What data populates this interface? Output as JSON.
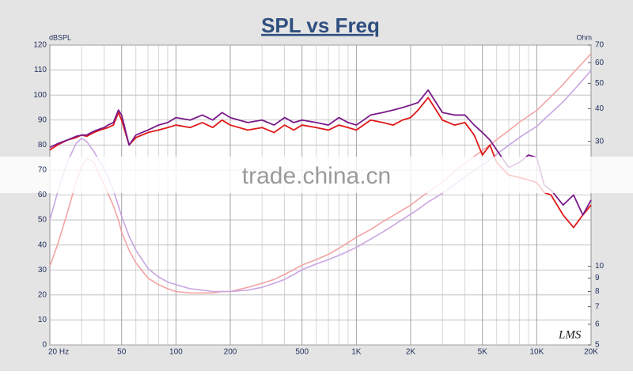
{
  "chart_data": {
    "type": "line",
    "title": "SPL vs Freq",
    "ylabel": "dBSPL",
    "y2label": "Ohm",
    "watermark": "trade.china.cn",
    "signature": "LMS",
    "xlog": true,
    "y2log": true,
    "grid": true,
    "xlim": [
      20,
      20000
    ],
    "xticks": [
      {
        "value": 20,
        "label": "20 Hz"
      },
      50,
      100,
      200,
      500,
      {
        "value": 1000,
        "label": "1K"
      },
      {
        "value": 2000,
        "label": "2K"
      },
      {
        "value": 5000,
        "label": "5K"
      },
      {
        "value": 10000,
        "label": "10K"
      },
      {
        "value": 20000,
        "label": "20K"
      }
    ],
    "xminorticks": [
      30,
      40,
      60,
      70,
      80,
      90,
      300,
      400,
      600,
      700,
      800,
      900,
      3000,
      4000,
      6000,
      7000,
      8000,
      9000
    ],
    "ylim": [
      0,
      120
    ],
    "yticks": [
      0,
      10,
      20,
      30,
      40,
      50,
      60,
      70,
      80,
      90,
      100,
      110,
      120
    ],
    "y2lim": [
      5,
      70
    ],
    "y2ticks": [
      5,
      6,
      7,
      8,
      9,
      10,
      30,
      40,
      50,
      60,
      70
    ],
    "x": [
      20,
      22,
      25,
      28,
      30,
      32,
      35,
      38,
      40,
      42,
      45,
      48,
      50,
      55,
      60,
      70,
      80,
      90,
      100,
      120,
      140,
      160,
      180,
      200,
      250,
      300,
      350,
      400,
      450,
      500,
      600,
      700,
      800,
      900,
      1000,
      1200,
      1400,
      1600,
      1800,
      2000,
      2200,
      2500,
      3000,
      3500,
      4000,
      4500,
      5000,
      5500,
      6000,
      7000,
      8000,
      9000,
      10000,
      11000,
      12000,
      14000,
      16000,
      18000,
      20000
    ],
    "series": [
      {
        "color": "#e01818",
        "values": [
          78,
          80,
          82,
          83,
          84,
          83.5,
          85,
          86,
          86.5,
          87,
          88,
          93,
          90,
          80,
          83,
          85,
          86,
          87,
          88,
          87,
          89,
          87,
          90,
          88,
          86,
          87,
          85,
          88,
          86,
          88,
          87,
          86,
          88,
          87,
          86,
          90,
          89,
          88,
          90,
          91,
          94,
          99,
          90,
          88,
          89,
          84,
          76,
          80,
          73,
          68,
          67,
          66,
          65,
          61,
          60,
          52,
          47,
          52,
          56
        ]
      },
      {
        "color": "#7a1a8a",
        "values": [
          79,
          80.5,
          82,
          83.5,
          84,
          84,
          85.5,
          86.5,
          87,
          88,
          89,
          94,
          92,
          80,
          84,
          86,
          88,
          89,
          91,
          90,
          92,
          90,
          93,
          91,
          89,
          90,
          88,
          91,
          89,
          90,
          89,
          88,
          91,
          89,
          88,
          92,
          93,
          94,
          95,
          96,
          97,
          102,
          93,
          92,
          92,
          88,
          85,
          82,
          78,
          71,
          73,
          76,
          75,
          64,
          62,
          56,
          60,
          52,
          58
        ]
      },
      {
        "color": "#f2a4a4",
        "axis": "y2",
        "values": [
          10,
          12,
          16,
          21,
          24,
          25.8,
          25,
          22,
          20.5,
          19,
          17,
          15,
          13.5,
          11.5,
          10.3,
          9,
          8.5,
          8.2,
          8,
          7.9,
          7.9,
          7.9,
          8,
          8,
          8.3,
          8.6,
          8.9,
          9.3,
          9.7,
          10.1,
          10.6,
          11.1,
          11.7,
          12.3,
          12.9,
          13.8,
          14.8,
          15.6,
          16.4,
          17.1,
          18,
          19.2,
          21,
          23,
          24.8,
          26.3,
          27.7,
          29,
          30.5,
          33,
          35.5,
          37.5,
          39.4,
          42,
          44.5,
          49.5,
          55,
          60,
          65
        ]
      },
      {
        "color": "#c9a6e2",
        "axis": "y2",
        "values": [
          15,
          19,
          25,
          29.5,
          30.8,
          30,
          27.5,
          25,
          23.5,
          22,
          19.5,
          17,
          15.5,
          13,
          11.5,
          9.8,
          9.1,
          8.7,
          8.5,
          8.2,
          8.1,
          8,
          8,
          8,
          8.1,
          8.3,
          8.6,
          8.9,
          9.3,
          9.7,
          10.2,
          10.6,
          11,
          11.4,
          11.8,
          12.7,
          13.5,
          14.3,
          15.1,
          15.8,
          16.5,
          17.6,
          19,
          20.5,
          22,
          23.3,
          24.3,
          25.6,
          26.8,
          29,
          31,
          32.7,
          34.2,
          36.5,
          38.5,
          42.5,
          47,
          51.5,
          56
        ]
      }
    ]
  }
}
